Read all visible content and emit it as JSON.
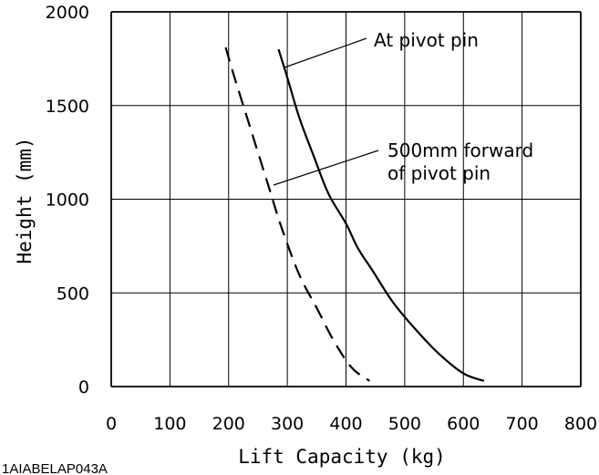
{
  "chart_data": {
    "type": "line",
    "xlabel": "Lift Capacity (kg)",
    "ylabel": "Height (mm)",
    "xlim": [
      0,
      800
    ],
    "ylim": [
      0,
      2000
    ],
    "x_ticks": [
      "0",
      "100",
      "200",
      "300",
      "400",
      "500",
      "600",
      "700",
      "800"
    ],
    "y_ticks": [
      "0",
      "500",
      "1000",
      "1500",
      "2000"
    ],
    "grid": true,
    "series": [
      {
        "name": "At pivot pin",
        "style": "solid",
        "color": "#000000",
        "points": [
          [
            285,
            1800
          ],
          [
            300,
            1650
          ],
          [
            320,
            1440
          ],
          [
            345,
            1230
          ],
          [
            370,
            1030
          ],
          [
            400,
            870
          ],
          [
            420,
            740
          ],
          [
            445,
            620
          ],
          [
            480,
            450
          ],
          [
            520,
            300
          ],
          [
            560,
            170
          ],
          [
            600,
            70
          ],
          [
            635,
            30
          ]
        ]
      },
      {
        "name": "500mm forward of pivot pin",
        "style": "dashed",
        "color": "#000000",
        "points": [
          [
            195,
            1810
          ],
          [
            210,
            1650
          ],
          [
            230,
            1450
          ],
          [
            250,
            1250
          ],
          [
            270,
            1050
          ],
          [
            290,
            850
          ],
          [
            320,
            600
          ],
          [
            350,
            420
          ],
          [
            380,
            240
          ],
          [
            410,
            100
          ],
          [
            440,
            30
          ]
        ]
      }
    ],
    "annotations": [
      {
        "text_lines": [
          "At pivot pin"
        ],
        "target": "solid"
      },
      {
        "text_lines": [
          "500mm forward",
          "of pivot pin"
        ],
        "target": "dashed"
      }
    ]
  },
  "figure_code": "1AIABELAP043A"
}
